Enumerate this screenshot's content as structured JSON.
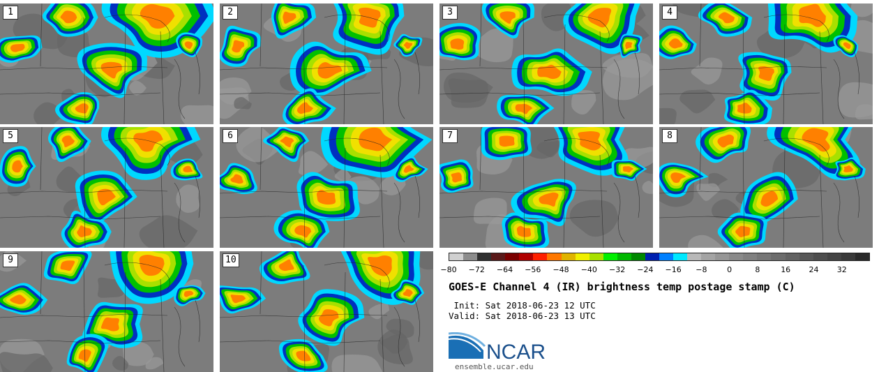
{
  "panels": [
    {
      "label": "1"
    },
    {
      "label": "2"
    },
    {
      "label": "3"
    },
    {
      "label": "4"
    },
    {
      "label": "5"
    },
    {
      "label": "6"
    },
    {
      "label": "7"
    },
    {
      "label": "8"
    },
    {
      "label": "9"
    },
    {
      "label": "10"
    }
  ],
  "colorbar": {
    "colors": [
      "#d0d0d0",
      "#8c8c8c",
      "#303030",
      "#5a1a1a",
      "#7a0000",
      "#b00000",
      "#ff2000",
      "#ff7800",
      "#e0b400",
      "#f0f000",
      "#a8e000",
      "#00f000",
      "#00b800",
      "#008800",
      "#0020b0",
      "#0080ff",
      "#00e8ff",
      "#b8b8b8",
      "#a4a4a4",
      "#969696",
      "#8a8a8a",
      "#808080",
      "#767676",
      "#6c6c6c",
      "#626262",
      "#585858",
      "#4e4e4e",
      "#444444",
      "#3a3a3a",
      "#2a2a2a"
    ],
    "tick_labels": [
      "-80",
      "-72",
      "-64",
      "-56",
      "-48",
      "-40",
      "-32",
      "-24",
      "-16",
      "-8",
      "0",
      "8",
      "16",
      "24",
      "32"
    ],
    "range": [
      -80,
      40
    ]
  },
  "title": "GOES-E Channel 4 (IR) brightness temp postage stamp (C)",
  "init_line": " Init: Sat 2018-06-23 12 UTC",
  "valid_line": "Valid: Sat 2018-06-23 13 UTC",
  "logo_text": "NCAR",
  "site": "ensemble.ucar.edu"
}
